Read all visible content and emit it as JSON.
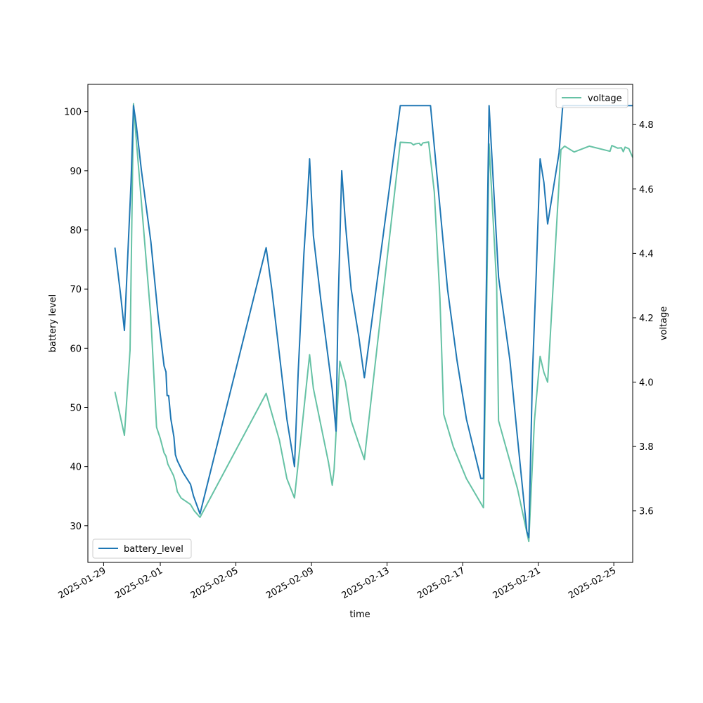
{
  "chart_data": {
    "type": "line",
    "xlabel": "time",
    "ylabel_left": "battery level",
    "ylabel_right": "voltage",
    "x_range": [
      "2025-01-28T04:00",
      "2025-02-26T00:00"
    ],
    "y_left_range": [
      23.8,
      104.6
    ],
    "y_right_range": [
      3.44,
      4.925
    ],
    "x_ticks": [
      "2025-01-29",
      "2025-02-01",
      "2025-02-05",
      "2025-02-09",
      "2025-02-13",
      "2025-02-17",
      "2025-02-21",
      "2025-02-25"
    ],
    "y_left_ticks": [
      30,
      40,
      50,
      60,
      70,
      80,
      90,
      100
    ],
    "y_right_ticks": [
      "3.6",
      "3.8",
      "4.0",
      "4.2",
      "4.4",
      "4.6",
      "4.8"
    ],
    "legend": [
      {
        "name": "battery_level",
        "axis": "left",
        "color": "#1f77b4",
        "position": "lower-left"
      },
      {
        "name": "voltage",
        "axis": "right",
        "color": "#66c2a5",
        "position": "upper-right"
      }
    ],
    "series": [
      {
        "name": "battery_level",
        "axis": "left",
        "color": "#1f77b4",
        "points": [
          [
            "2025-01-29T14:24",
            77
          ],
          [
            "2025-01-29T21:36",
            69
          ],
          [
            "2025-01-30T02:24",
            63
          ],
          [
            "2025-01-30T10:48",
            88
          ],
          [
            "2025-01-30T13:55",
            101
          ],
          [
            "2025-01-30T17:17",
            98
          ],
          [
            "2025-01-31T00:00",
            90
          ],
          [
            "2025-01-31T12:00",
            78
          ],
          [
            "2025-01-31T21:36",
            65
          ],
          [
            "2025-02-01T04:48",
            57
          ],
          [
            "2025-02-01T07:12",
            56
          ],
          [
            "2025-02-01T08:38",
            52
          ],
          [
            "2025-02-01T10:34",
            52
          ],
          [
            "2025-02-01T13:26",
            48
          ],
          [
            "2025-02-01T17:17",
            45
          ],
          [
            "2025-02-01T19:12",
            42
          ],
          [
            "2025-02-01T21:36",
            41
          ],
          [
            "2025-02-02T04:48",
            39
          ],
          [
            "2025-02-02T14:24",
            37
          ],
          [
            "2025-02-02T18:14",
            35
          ],
          [
            "2025-02-03T02:24",
            32
          ],
          [
            "2025-02-06T14:24",
            77
          ],
          [
            "2025-02-06T21:36",
            70
          ],
          [
            "2025-02-07T07:12",
            59
          ],
          [
            "2025-02-07T16:48",
            48
          ],
          [
            "2025-02-07T21:36",
            44
          ],
          [
            "2025-02-08T02:24",
            40
          ],
          [
            "2025-02-08T07:12",
            56
          ],
          [
            "2025-02-08T14:24",
            76
          ],
          [
            "2025-02-08T19:12",
            86
          ],
          [
            "2025-02-08T21:36",
            92
          ],
          [
            "2025-02-09T02:24",
            79
          ],
          [
            "2025-02-09T12:00",
            68
          ],
          [
            "2025-02-10T02:24",
            53
          ],
          [
            "2025-02-10T07:12",
            46
          ],
          [
            "2025-02-10T09:36",
            66
          ],
          [
            "2025-02-10T14:24",
            90
          ],
          [
            "2025-02-10T19:12",
            81
          ],
          [
            "2025-02-11T02:24",
            70
          ],
          [
            "2025-02-11T12:00",
            62
          ],
          [
            "2025-02-11T19:12",
            55
          ],
          [
            "2025-02-13T16:48",
            101
          ],
          [
            "2025-02-15T07:12",
            101
          ],
          [
            "2025-02-16T04:48",
            70
          ],
          [
            "2025-02-16T16:48",
            58
          ],
          [
            "2025-02-17T04:48",
            48
          ],
          [
            "2025-02-17T23:00",
            38
          ],
          [
            "2025-02-18T02:24",
            38
          ],
          [
            "2025-02-18T09:36",
            101
          ],
          [
            "2025-02-18T21:36",
            72
          ],
          [
            "2025-02-19T12:00",
            58
          ],
          [
            "2025-02-19T21:36",
            45
          ],
          [
            "2025-02-20T09:36",
            29
          ],
          [
            "2025-02-20T12:00",
            28
          ],
          [
            "2025-02-20T16:48",
            56
          ],
          [
            "2025-02-20T21:36",
            73
          ],
          [
            "2025-02-21T02:24",
            92
          ],
          [
            "2025-02-21T07:12",
            88
          ],
          [
            "2025-02-21T12:00",
            81
          ],
          [
            "2025-02-21T16:48",
            85
          ],
          [
            "2025-02-22T02:24",
            93
          ],
          [
            "2025-02-22T07:12",
            101
          ],
          [
            "2025-02-26T00:00",
            101
          ]
        ]
      },
      {
        "name": "voltage",
        "axis": "right",
        "color": "#66c2a5",
        "points": [
          [
            "2025-01-29T14:24",
            3.97
          ],
          [
            "2025-01-30T02:24",
            3.835
          ],
          [
            "2025-01-30T09:36",
            4.1
          ],
          [
            "2025-01-30T13:55",
            4.865
          ],
          [
            "2025-01-30T17:17",
            4.76
          ],
          [
            "2025-01-31T12:00",
            4.2
          ],
          [
            "2025-01-31T19:12",
            3.86
          ],
          [
            "2025-02-01T00:00",
            3.825
          ],
          [
            "2025-02-01T04:48",
            3.78
          ],
          [
            "2025-02-01T07:12",
            3.77
          ],
          [
            "2025-02-01T09:36",
            3.745
          ],
          [
            "2025-02-01T16:48",
            3.71
          ],
          [
            "2025-02-01T19:12",
            3.69
          ],
          [
            "2025-02-01T21:36",
            3.66
          ],
          [
            "2025-02-02T02:24",
            3.64
          ],
          [
            "2025-02-02T14:24",
            3.62
          ],
          [
            "2025-02-02T19:12",
            3.6
          ],
          [
            "2025-02-03T02:24",
            3.58
          ],
          [
            "2025-02-06T14:24",
            3.965
          ],
          [
            "2025-02-07T07:12",
            3.82
          ],
          [
            "2025-02-07T16:48",
            3.7
          ],
          [
            "2025-02-08T02:24",
            3.64
          ],
          [
            "2025-02-08T12:00",
            3.86
          ],
          [
            "2025-02-08T21:36",
            4.085
          ],
          [
            "2025-02-09T02:24",
            3.98
          ],
          [
            "2025-02-09T21:36",
            3.75
          ],
          [
            "2025-02-10T02:24",
            3.68
          ],
          [
            "2025-02-10T04:48",
            3.73
          ],
          [
            "2025-02-10T12:00",
            4.065
          ],
          [
            "2025-02-10T19:12",
            4.0
          ],
          [
            "2025-02-11T02:24",
            3.88
          ],
          [
            "2025-02-11T12:00",
            3.81
          ],
          [
            "2025-02-11T19:12",
            3.76
          ],
          [
            "2025-02-13T16:48",
            4.745
          ],
          [
            "2025-02-14T06:29",
            4.743
          ],
          [
            "2025-02-14T09:36",
            4.737
          ],
          [
            "2025-02-14T12:00",
            4.74
          ],
          [
            "2025-02-14T16:48",
            4.742
          ],
          [
            "2025-02-14T19:12",
            4.735
          ],
          [
            "2025-02-14T21:36",
            4.743
          ],
          [
            "2025-02-15T04:48",
            4.746
          ],
          [
            "2025-02-15T12:00",
            4.59
          ],
          [
            "2025-02-15T19:12",
            4.26
          ],
          [
            "2025-02-16T00:00",
            3.9
          ],
          [
            "2025-02-16T12:00",
            3.8
          ],
          [
            "2025-02-17T04:48",
            3.7
          ],
          [
            "2025-02-18T02:24",
            3.61
          ],
          [
            "2025-02-18T09:36",
            4.74
          ],
          [
            "2025-02-18T19:12",
            4.3
          ],
          [
            "2025-02-18T21:36",
            3.88
          ],
          [
            "2025-02-19T21:36",
            3.67
          ],
          [
            "2025-02-20T12:00",
            3.505
          ],
          [
            "2025-02-20T19:12",
            3.88
          ],
          [
            "2025-02-21T02:24",
            4.08
          ],
          [
            "2025-02-21T07:12",
            4.03
          ],
          [
            "2025-02-21T12:00",
            4.0
          ],
          [
            "2025-02-22T04:48",
            4.722
          ],
          [
            "2025-02-22T09:36",
            4.733
          ],
          [
            "2025-02-22T21:36",
            4.715
          ],
          [
            "2025-02-23T16:48",
            4.733
          ],
          [
            "2025-02-24T19:12",
            4.717
          ],
          [
            "2025-02-24T21:36",
            4.735
          ],
          [
            "2025-02-25T04:48",
            4.727
          ],
          [
            "2025-02-25T09:36",
            4.728
          ],
          [
            "2025-02-25T12:00",
            4.716
          ],
          [
            "2025-02-25T14:24",
            4.73
          ],
          [
            "2025-02-25T19:12",
            4.725
          ],
          [
            "2025-02-26T00:00",
            4.698
          ]
        ]
      }
    ]
  }
}
